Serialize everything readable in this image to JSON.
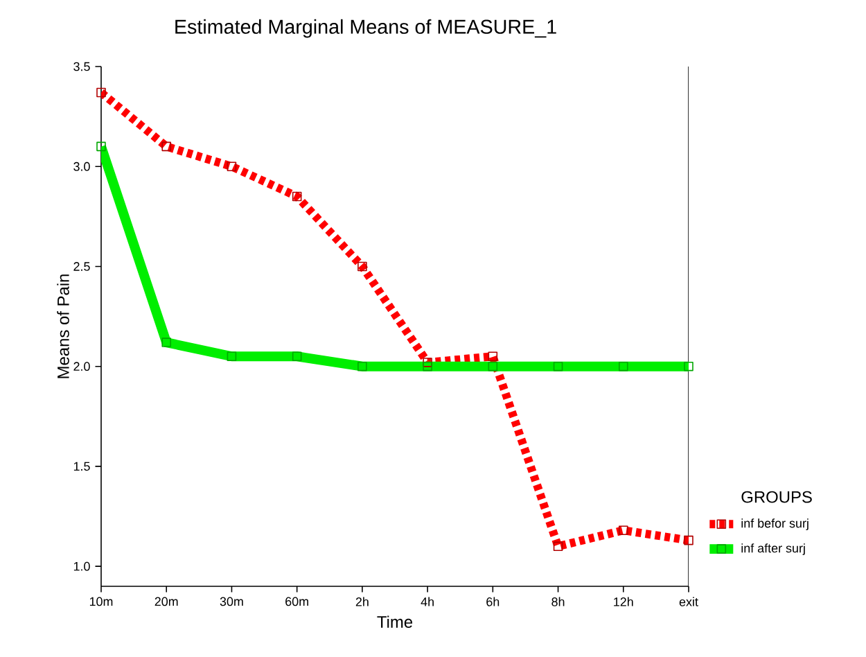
{
  "chart_data": {
    "type": "line",
    "title": "Estimated Marginal Means of MEASURE_1",
    "xlabel": "Time",
    "ylabel": "Means of Pain",
    "legend_title": "GROUPS",
    "categories": [
      "10m",
      "20m",
      "30m",
      "60m",
      "2h",
      "4h",
      "6h",
      "8h",
      "12h",
      "exit"
    ],
    "series": [
      {
        "name": "inf befor surj",
        "color": "#ff0000",
        "line_style": "dashed",
        "values": [
          3.37,
          3.1,
          3.0,
          2.85,
          2.5,
          2.02,
          2.05,
          1.1,
          1.18,
          1.13
        ]
      },
      {
        "name": "inf after surj",
        "color": "#00ee00",
        "line_style": "solid",
        "values": [
          3.1,
          2.12,
          2.05,
          2.05,
          2.0,
          2.0,
          2.0,
          2.0,
          2.0,
          2.0
        ]
      }
    ],
    "ylim": [
      0.9,
      3.5
    ],
    "yticks": [
      {
        "value": 1,
        "label": "1.0"
      },
      1.5,
      {
        "value": 2,
        "label": "2.0"
      },
      2.5,
      {
        "value": 3,
        "label": "3.0"
      },
      3.5
    ],
    "marker": "square",
    "legend": "right",
    "grid": false
  }
}
